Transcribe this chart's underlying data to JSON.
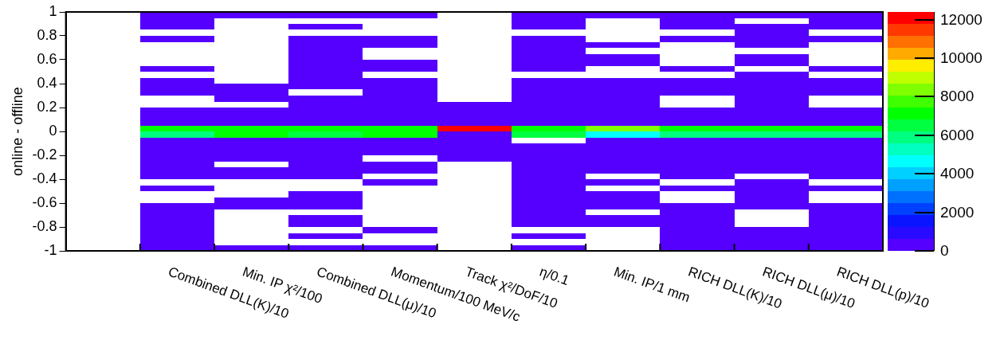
{
  "chart_data": {
    "type": "heatmap",
    "ylabel": "online - offline",
    "categories": [
      null,
      "Combined DLL(K)/10",
      "Min. IP χ²/100",
      "Combined DLL(μ)/10",
      "Momentum/100 MeV/c",
      "Track χ²/DoF/10",
      "η/0.1",
      "Min. IP/1 mm",
      "RICH DLL(K)/10",
      "RICH DLL(μ)/10",
      "RICH DLL(p)/10"
    ],
    "ylim": [
      -1,
      1
    ],
    "yticks": [
      -1,
      -0.8,
      -0.6,
      -0.4,
      -0.2,
      0,
      0.2,
      0.4,
      0.6,
      0.8,
      1
    ],
    "clim": [
      0,
      12400
    ],
    "cticks": [
      0,
      2000,
      4000,
      6000,
      8000,
      10000,
      12000
    ],
    "cells": [
      [
        null,
        200,
        200,
        200,
        200,
        null,
        200,
        200,
        200,
        200,
        200
      ],
      [
        null,
        200,
        null,
        null,
        null,
        null,
        200,
        null,
        200,
        null,
        200
      ],
      [
        null,
        200,
        null,
        200,
        null,
        null,
        200,
        null,
        200,
        200,
        200
      ],
      [
        null,
        null,
        null,
        null,
        null,
        null,
        null,
        null,
        null,
        200,
        null
      ],
      [
        null,
        200,
        null,
        200,
        200,
        null,
        200,
        null,
        200,
        200,
        200
      ],
      [
        null,
        null,
        null,
        200,
        200,
        null,
        200,
        200,
        null,
        200,
        null
      ],
      [
        null,
        null,
        null,
        200,
        null,
        null,
        200,
        null,
        null,
        null,
        null
      ],
      [
        null,
        null,
        null,
        200,
        null,
        null,
        200,
        200,
        null,
        200,
        null
      ],
      [
        null,
        null,
        null,
        200,
        200,
        null,
        200,
        200,
        null,
        200,
        null
      ],
      [
        null,
        200,
        null,
        200,
        200,
        null,
        200,
        null,
        200,
        null,
        200
      ],
      [
        null,
        null,
        null,
        200,
        null,
        null,
        null,
        null,
        null,
        200,
        null
      ],
      [
        null,
        200,
        null,
        200,
        200,
        null,
        200,
        200,
        200,
        200,
        200
      ],
      [
        null,
        200,
        200,
        200,
        200,
        null,
        200,
        200,
        200,
        200,
        200
      ],
      [
        null,
        200,
        200,
        null,
        200,
        null,
        200,
        200,
        200,
        200,
        200
      ],
      [
        null,
        null,
        200,
        200,
        200,
        null,
        200,
        200,
        null,
        200,
        null
      ],
      [
        null,
        null,
        null,
        200,
        200,
        200,
        200,
        200,
        null,
        200,
        null
      ],
      [
        null,
        200,
        200,
        200,
        200,
        200,
        200,
        200,
        200,
        200,
        200
      ],
      [
        null,
        200,
        200,
        200,
        200,
        200,
        200,
        200,
        200,
        200,
        200
      ],
      [
        null,
        200,
        200,
        200,
        200,
        200,
        200,
        200,
        200,
        200,
        200
      ],
      [
        null,
        7000,
        7000,
        7000,
        7000,
        12300,
        7000,
        8300,
        7000,
        7000,
        7000
      ],
      [
        null,
        5800,
        7000,
        6300,
        7000,
        200,
        6300,
        4400,
        5800,
        5800,
        5800
      ],
      [
        null,
        200,
        200,
        200,
        200,
        200,
        null,
        200,
        200,
        200,
        200
      ],
      [
        null,
        200,
        200,
        200,
        200,
        200,
        200,
        200,
        200,
        200,
        200
      ],
      [
        null,
        200,
        200,
        200,
        200,
        200,
        200,
        200,
        200,
        200,
        200
      ],
      [
        null,
        200,
        200,
        200,
        null,
        200,
        200,
        200,
        200,
        200,
        200
      ],
      [
        null,
        200,
        null,
        200,
        200,
        null,
        200,
        200,
        200,
        200,
        200
      ],
      [
        null,
        200,
        200,
        200,
        200,
        null,
        200,
        200,
        200,
        200,
        200
      ],
      [
        null,
        200,
        200,
        200,
        null,
        null,
        200,
        null,
        200,
        null,
        200
      ],
      [
        null,
        null,
        null,
        null,
        200,
        null,
        200,
        200,
        null,
        200,
        null
      ],
      [
        null,
        200,
        null,
        null,
        null,
        null,
        200,
        null,
        200,
        200,
        200
      ],
      [
        null,
        null,
        null,
        200,
        null,
        null,
        200,
        200,
        null,
        200,
        null
      ],
      [
        null,
        null,
        200,
        200,
        null,
        null,
        200,
        200,
        null,
        200,
        null
      ],
      [
        null,
        200,
        200,
        200,
        null,
        null,
        200,
        200,
        200,
        200,
        200
      ],
      [
        null,
        200,
        null,
        null,
        null,
        null,
        200,
        null,
        200,
        null,
        200
      ],
      [
        null,
        200,
        null,
        200,
        null,
        null,
        200,
        200,
        200,
        null,
        200
      ],
      [
        null,
        200,
        null,
        200,
        null,
        null,
        200,
        200,
        200,
        null,
        200
      ],
      [
        null,
        200,
        null,
        null,
        200,
        null,
        null,
        null,
        200,
        200,
        200
      ],
      [
        null,
        200,
        null,
        200,
        null,
        null,
        200,
        null,
        200,
        200,
        200
      ],
      [
        null,
        200,
        null,
        null,
        null,
        null,
        null,
        null,
        200,
        200,
        200
      ],
      [
        null,
        200,
        200,
        200,
        200,
        null,
        200,
        null,
        200,
        200,
        200
      ]
    ]
  }
}
